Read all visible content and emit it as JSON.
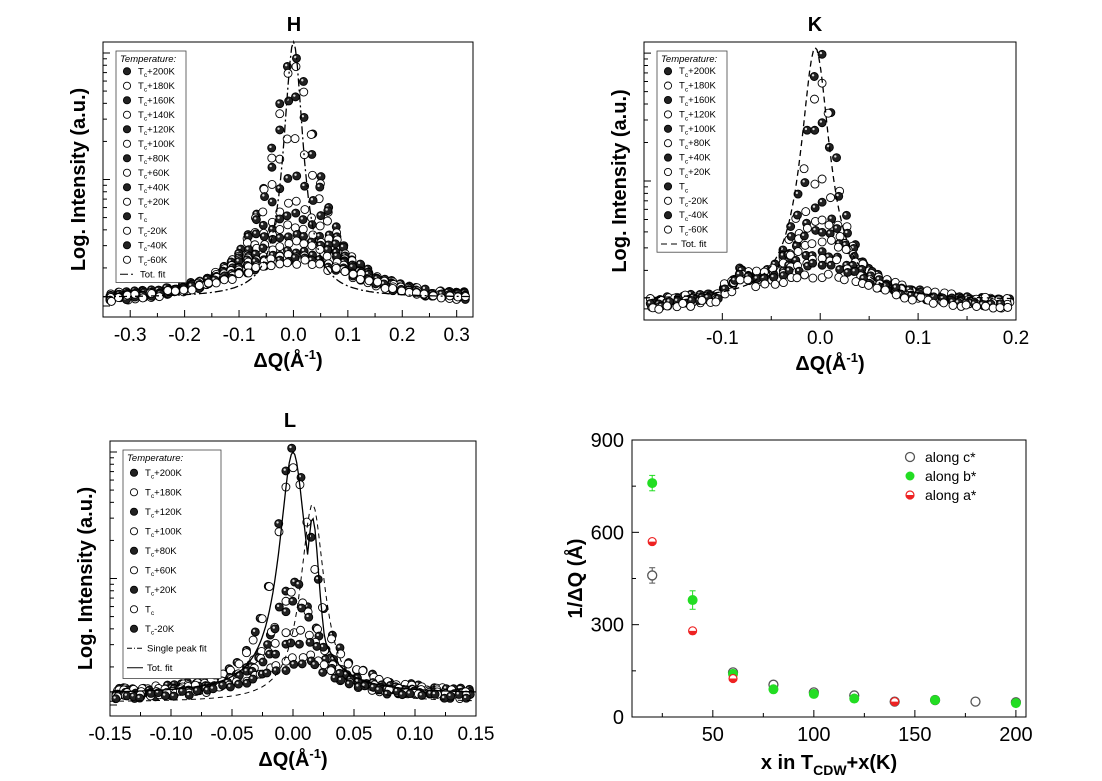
{
  "chart_data": [
    {
      "id": "H",
      "type": "scatter",
      "title": "H",
      "xlabel": "ΔQ(Å⁻¹)",
      "ylabel": "Log. Intensity (a.u.)",
      "xlim": [
        -0.35,
        0.33
      ],
      "ylim": [
        0,
        1
      ],
      "xticks": [
        -0.3,
        -0.2,
        -0.1,
        0.0,
        0.1,
        0.2,
        0.3
      ],
      "xtick_labels": [
        "-0.3",
        "-0.2",
        "-0.1",
        "0.0",
        "0.1",
        "0.2",
        "0.3"
      ],
      "legend_title": "Temperature:",
      "legend_position": "top-left",
      "fit_label": "Tot. fit",
      "fit_style": "dashdot",
      "series": [
        {
          "name": "Tc+200K",
          "sub": "c",
          "base": "T",
          "suffix": "+200K",
          "filled": true,
          "peak": 0.96,
          "bg": 0.06,
          "w": 0.05
        },
        {
          "name": "Tc+180K",
          "sub": "c",
          "base": "T",
          "suffix": "+180K",
          "filled": false,
          "peak": 0.92,
          "bg": 0.06,
          "w": 0.05
        },
        {
          "name": "Tc+160K",
          "sub": "c",
          "base": "T",
          "suffix": "+160K",
          "filled": true,
          "peak": 0.8,
          "bg": 0.06,
          "w": 0.055
        },
        {
          "name": "Tc+140K",
          "sub": "c",
          "base": "T",
          "suffix": "+140K",
          "filled": false,
          "peak": 0.66,
          "bg": 0.06,
          "w": 0.06
        },
        {
          "name": "Tc+120K",
          "sub": "c",
          "base": "T",
          "suffix": "+120K",
          "filled": true,
          "peak": 0.52,
          "bg": 0.06,
          "w": 0.07
        },
        {
          "name": "Tc+100K",
          "sub": "c",
          "base": "T",
          "suffix": "+100K",
          "filled": false,
          "peak": 0.42,
          "bg": 0.06,
          "w": 0.08
        },
        {
          "name": "Tc+80K",
          "sub": "c",
          "base": "T",
          "suffix": "+80K",
          "filled": true,
          "peak": 0.37,
          "bg": 0.05,
          "w": 0.09
        },
        {
          "name": "Tc+60K",
          "sub": "c",
          "base": "T",
          "suffix": "+60K",
          "filled": false,
          "peak": 0.33,
          "bg": 0.05,
          "w": 0.1
        },
        {
          "name": "Tc+40K",
          "sub": "c",
          "base": "T",
          "suffix": "+40K",
          "filled": true,
          "peak": 0.3,
          "bg": 0.05,
          "w": 0.11
        },
        {
          "name": "Tc+20K",
          "sub": "c",
          "base": "T",
          "suffix": "+20K",
          "filled": false,
          "peak": 0.27,
          "bg": 0.04,
          "w": 0.12
        },
        {
          "name": "Tc",
          "sub": "c",
          "base": "T",
          "suffix": "",
          "filled": true,
          "peak": 0.24,
          "bg": 0.04,
          "w": 0.13
        },
        {
          "name": "Tc-20K",
          "sub": "c",
          "base": "T",
          "suffix": "-20K",
          "filled": false,
          "peak": 0.22,
          "bg": 0.04,
          "w": 0.14
        },
        {
          "name": "Tc-40K",
          "sub": "c",
          "base": "T",
          "suffix": "-40K",
          "filled": true,
          "peak": 0.21,
          "bg": 0.035,
          "w": 0.15
        },
        {
          "name": "Tc-60K",
          "sub": "c",
          "base": "T",
          "suffix": "-60K",
          "filled": false,
          "peak": 0.2,
          "bg": 0.035,
          "w": 0.16
        }
      ],
      "fit": {
        "center": 0.0,
        "peak": 1.0,
        "bg": 0.07,
        "w": 0.022
      }
    },
    {
      "id": "K",
      "type": "scatter",
      "title": "K",
      "xlabel": "ΔQ(Å⁻¹)",
      "ylabel": "Log. Intensity (a.u.)",
      "xlim": [
        -0.18,
        0.2
      ],
      "ylim": [
        0,
        1
      ],
      "xticks": [
        -0.1,
        0.0,
        0.1,
        0.2
      ],
      "xtick_labels": [
        "-0.1",
        "0.0",
        "0.1",
        "0.2"
      ],
      "legend_title": "Temperature:",
      "legend_position": "top-left",
      "fit_label": "Tot. fit",
      "fit_style": "dashed",
      "series": [
        {
          "name": "Tc+200K",
          "sub": "c",
          "base": "T",
          "suffix": "+200K",
          "filled": true,
          "peak": 0.96,
          "bg": 0.06,
          "w": 0.02
        },
        {
          "name": "Tc+180K",
          "sub": "c",
          "base": "T",
          "suffix": "+180K",
          "filled": false,
          "peak": 0.86,
          "bg": 0.06,
          "w": 0.02
        },
        {
          "name": "Tc+160K",
          "sub": "c",
          "base": "T",
          "suffix": "+160K",
          "filled": true,
          "peak": 0.72,
          "bg": 0.06,
          "w": 0.022
        },
        {
          "name": "Tc+120K",
          "sub": "c",
          "base": "T",
          "suffix": "+120K",
          "filled": false,
          "peak": 0.5,
          "bg": 0.06,
          "w": 0.025
        },
        {
          "name": "Tc+100K",
          "sub": "c",
          "base": "T",
          "suffix": "+100K",
          "filled": true,
          "peak": 0.42,
          "bg": 0.06,
          "w": 0.03
        },
        {
          "name": "Tc+80K",
          "sub": "c",
          "base": "T",
          "suffix": "+80K",
          "filled": false,
          "peak": 0.36,
          "bg": 0.05,
          "w": 0.04
        },
        {
          "name": "Tc+40K",
          "sub": "c",
          "base": "T",
          "suffix": "+40K",
          "filled": true,
          "peak": 0.32,
          "bg": 0.05,
          "w": 0.05
        },
        {
          "name": "Tc+20K",
          "sub": "c",
          "base": "T",
          "suffix": "+20K",
          "filled": false,
          "peak": 0.29,
          "bg": 0.05,
          "w": 0.055
        },
        {
          "name": "Tc",
          "sub": "c",
          "base": "T",
          "suffix": "",
          "filled": true,
          "peak": 0.24,
          "bg": 0.04,
          "w": 0.06
        },
        {
          "name": "Tc-20K",
          "sub": "c",
          "base": "T",
          "suffix": "-20K",
          "filled": false,
          "peak": 0.22,
          "bg": 0.03,
          "w": 0.065
        },
        {
          "name": "Tc-40K",
          "sub": "c",
          "base": "T",
          "suffix": "-40K",
          "filled": true,
          "peak": 0.2,
          "bg": 0.03,
          "w": 0.07
        },
        {
          "name": "Tc-60K",
          "sub": "c",
          "base": "T",
          "suffix": "-60K",
          "filled": false,
          "peak": 0.16,
          "bg": 0.02,
          "w": 0.08
        }
      ],
      "fit": {
        "center": -0.005,
        "peak": 0.98,
        "bg": 0.07,
        "w": 0.018
      }
    },
    {
      "id": "L",
      "type": "scatter",
      "title": "L",
      "xlabel": "ΔQ(Å⁻¹)",
      "ylabel": "Log. Intensity (a.u.)",
      "xlim": [
        -0.15,
        0.15
      ],
      "ylim": [
        0,
        1
      ],
      "xticks": [
        -0.15,
        -0.1,
        -0.05,
        0.0,
        0.05,
        0.1,
        0.15
      ],
      "xtick_labels": [
        "-0.15",
        "-0.10",
        "-0.05",
        "0.00",
        "0.05",
        "0.10",
        "0.15"
      ],
      "legend_title": "Temperature:",
      "legend_position": "top-left",
      "fit_label": "Tot. fit",
      "single_fit_label": "Single peak fit",
      "fit_style": "solid",
      "series": [
        {
          "name": "Tc+200K",
          "sub": "c",
          "base": "T",
          "suffix": "+200K",
          "filled": true,
          "peak": 0.96,
          "bg": 0.08,
          "w": 0.018
        },
        {
          "name": "Tc+180K",
          "sub": "c",
          "base": "T",
          "suffix": "+180K",
          "filled": false,
          "peak": 0.9,
          "bg": 0.08,
          "w": 0.018
        },
        {
          "name": "Tc+120K",
          "sub": "c",
          "base": "T",
          "suffix": "+120K",
          "filled": true,
          "peak": 0.48,
          "bg": 0.08,
          "w": 0.02
        },
        {
          "name": "Tc+100K",
          "sub": "c",
          "base": "T",
          "suffix": "+100K",
          "filled": false,
          "peak": 0.44,
          "bg": 0.08,
          "w": 0.022
        },
        {
          "name": "Tc+80K",
          "sub": "c",
          "base": "T",
          "suffix": "+80K",
          "filled": true,
          "peak": 0.4,
          "bg": 0.07,
          "w": 0.025
        },
        {
          "name": "Tc+60K",
          "sub": "c",
          "base": "T",
          "suffix": "+60K",
          "filled": false,
          "peak": 0.3,
          "bg": 0.07,
          "w": 0.03
        },
        {
          "name": "Tc+20K",
          "sub": "c",
          "base": "T",
          "suffix": "+20K",
          "filled": true,
          "peak": 0.26,
          "bg": 0.06,
          "w": 0.035
        },
        {
          "name": "Tc",
          "sub": "c",
          "base": "T",
          "suffix": "",
          "filled": false,
          "peak": 0.2,
          "bg": 0.06,
          "w": 0.04
        },
        {
          "name": "Tc-20K",
          "sub": "c",
          "base": "T",
          "suffix": "-20K",
          "filled": true,
          "peak": 0.17,
          "bg": 0.06,
          "w": 0.045
        }
      ],
      "fit": {
        "center": 0.0,
        "peak": 0.96,
        "bg": 0.08,
        "w": 0.014
      },
      "single_fit": {
        "center": 0.016,
        "peak": 0.72,
        "bg": 0.0,
        "w": 0.008
      }
    },
    {
      "id": "correlation",
      "type": "scatter",
      "title": "",
      "xlabel": "x in T",
      "xlabel_sub": "CDW",
      "xlabel_suffix": "+x(K)",
      "ylabel": "1/ΔQ (Å)",
      "xlim": [
        10,
        205
      ],
      "ylim": [
        0,
        900
      ],
      "xticks": [
        50,
        100,
        150,
        200
      ],
      "xtick_labels": [
        "50",
        "100",
        "150",
        "200"
      ],
      "yticks": [
        0,
        300,
        600,
        900
      ],
      "ytick_labels": [
        "0",
        "300",
        "600",
        "900"
      ],
      "legend_position": "top-right",
      "series": [
        {
          "name": "along c*",
          "color": "#555555",
          "style": "open",
          "x": [
            20,
            60,
            80,
            100,
            120,
            140,
            160,
            180,
            200
          ],
          "y": [
            460,
            145,
            105,
            80,
            70,
            50,
            55,
            50,
            48
          ],
          "err": [
            25,
            10,
            8,
            6,
            5,
            4,
            4,
            4,
            4
          ]
        },
        {
          "name": "along b*",
          "color": "#22dd22",
          "style": "filled",
          "x": [
            20,
            40,
            60,
            80,
            100,
            120,
            160,
            200
          ],
          "y": [
            760,
            380,
            140,
            90,
            75,
            60,
            55,
            45
          ],
          "err": [
            25,
            30,
            8,
            6,
            5,
            4,
            4,
            4
          ]
        },
        {
          "name": "along a*",
          "color": "#ee2222",
          "style": "half",
          "x": [
            20,
            40,
            60,
            140
          ],
          "y": [
            570,
            280,
            125,
            50
          ],
          "err": [
            8,
            6,
            5,
            3
          ]
        }
      ]
    }
  ]
}
